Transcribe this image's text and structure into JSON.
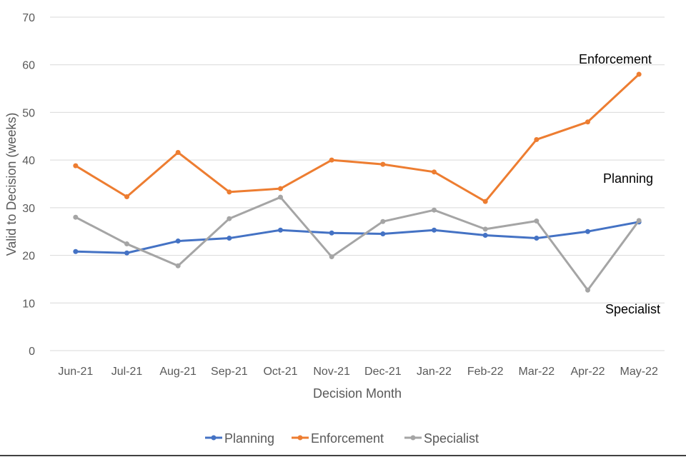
{
  "chart_data": {
    "type": "line",
    "title": "",
    "xlabel": "Decision Month",
    "ylabel": "Valid to Decision (weeks)",
    "ylim": [
      0,
      70
    ],
    "yticks": [
      0,
      10,
      20,
      30,
      40,
      50,
      60,
      70
    ],
    "grid": true,
    "legend_position": "bottom",
    "categories": [
      "Jun-21",
      "Jul-21",
      "Aug-21",
      "Sep-21",
      "Oct-21",
      "Nov-21",
      "Dec-21",
      "Jan-22",
      "Feb-22",
      "Mar-22",
      "Apr-22",
      "May-22"
    ],
    "series": [
      {
        "name": "Planning",
        "color": "#4472c4",
        "values": [
          20.8,
          20.5,
          23.0,
          23.6,
          25.3,
          24.7,
          24.5,
          25.3,
          24.2,
          23.6,
          25.0,
          27.0
        ]
      },
      {
        "name": "Enforcement",
        "color": "#ed7d31",
        "values": [
          38.8,
          32.3,
          41.6,
          33.3,
          34.0,
          40.0,
          39.1,
          37.5,
          31.3,
          44.3,
          48.0,
          58.0
        ]
      },
      {
        "name": "Specialist",
        "color": "#a5a5a5",
        "values": [
          28.0,
          22.4,
          17.8,
          27.7,
          32.2,
          19.7,
          27.1,
          29.5,
          25.5,
          27.2,
          12.7,
          27.3
        ]
      }
    ],
    "annotations": [
      {
        "text": "Enforcement"
      },
      {
        "text": "Planning"
      },
      {
        "text": "Specialist"
      }
    ]
  }
}
